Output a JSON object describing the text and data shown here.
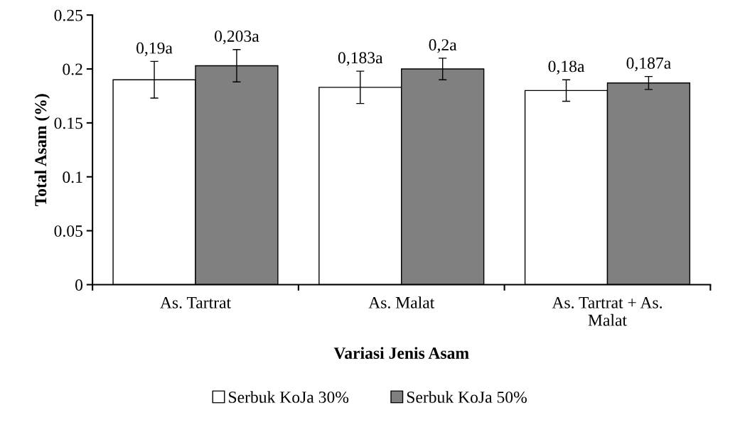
{
  "chart_data": {
    "type": "bar",
    "xlabel": "Variasi Jenis Asam",
    "ylabel": "Total Asam (%)",
    "categories": [
      "As. Tartrat",
      "As. Malat",
      "As. Tartrat + As. Malat"
    ],
    "series": [
      {
        "name": "Serbuk KoJa 30%",
        "color": "#ffffff",
        "values": [
          0.19,
          0.183,
          0.18
        ],
        "errors": [
          0.017,
          0.015,
          0.01
        ],
        "value_labels": [
          "0,19a",
          "0,183a",
          "0,18a"
        ]
      },
      {
        "name": "Serbuk KoJa 50%",
        "color": "#808080",
        "values": [
          0.203,
          0.2,
          0.187
        ],
        "errors": [
          0.015,
          0.01,
          0.006
        ],
        "value_labels": [
          "0,203a",
          "0,2a",
          "0,187a"
        ]
      }
    ],
    "ylim": [
      0,
      0.25
    ],
    "yticks": [
      0,
      0.05,
      0.1,
      0.15,
      0.2,
      0.25
    ],
    "grid": false,
    "legend": "bottom"
  }
}
